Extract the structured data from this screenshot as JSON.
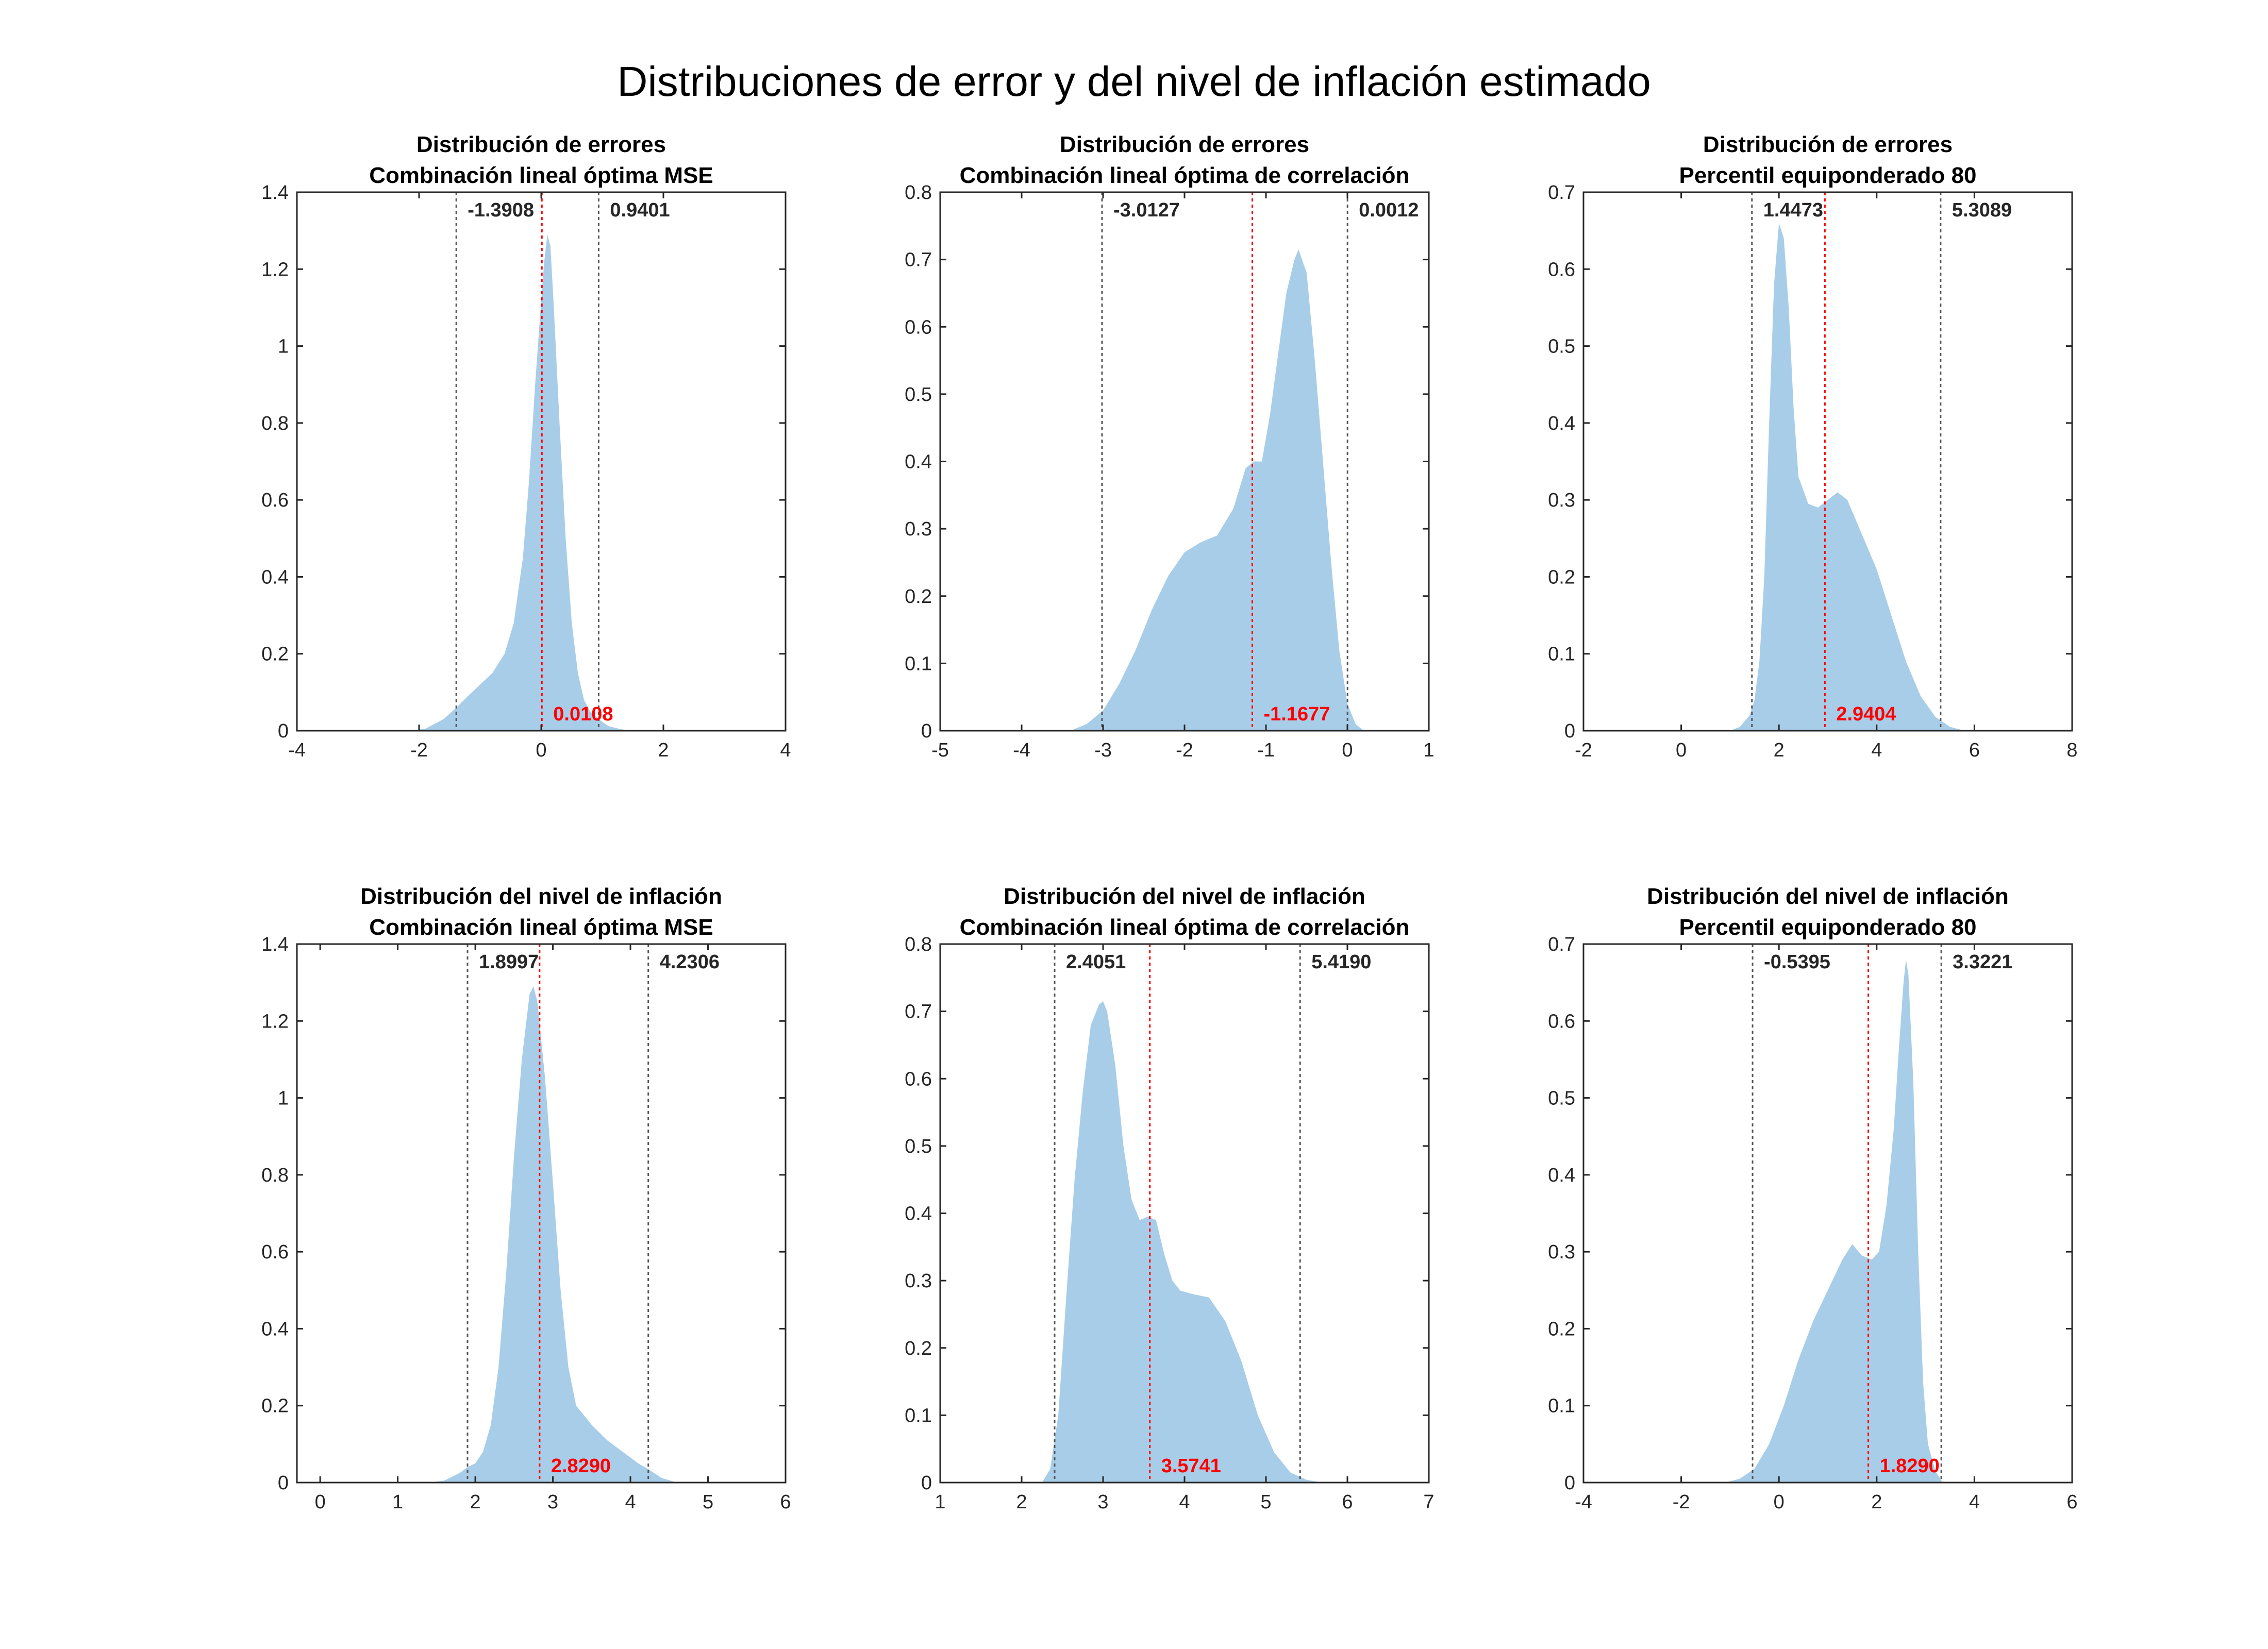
{
  "figure": {
    "title": "Distribuciones de error y del nivel de inflación estimado",
    "fill_color": "#a8cde8",
    "median_line_color": "#ff0000",
    "ci_line_color": "#555555"
  },
  "chart_data": [
    {
      "type": "area",
      "title": [
        "Distribución de errores",
        "Combinación lineal óptima MSE"
      ],
      "xlim": [
        -4,
        4
      ],
      "ylim": [
        0,
        1.4
      ],
      "xticks": [
        -4,
        -2,
        0,
        2,
        4
      ],
      "xtick_labels": [
        "-4",
        "-2",
        "0",
        "2",
        "4"
      ],
      "yticks": [
        0,
        0.2,
        0.4,
        0.6,
        0.8,
        1,
        1.2,
        1.4
      ],
      "ytick_labels": [
        "0",
        "0.2",
        "0.4",
        "0.6",
        "0.8",
        "1",
        "1.2",
        "1.4"
      ],
      "density": {
        "x": [
          -2.2,
          -1.9,
          -1.6,
          -1.39,
          -1.2,
          -1.0,
          -0.8,
          -0.6,
          -0.45,
          -0.3,
          -0.2,
          -0.1,
          0.0,
          0.05,
          0.1,
          0.15,
          0.2,
          0.3,
          0.4,
          0.5,
          0.6,
          0.7,
          0.8,
          0.94,
          1.1,
          1.3,
          1.5
        ],
        "y": [
          0,
          0.005,
          0.03,
          0.06,
          0.09,
          0.12,
          0.15,
          0.2,
          0.28,
          0.45,
          0.65,
          0.9,
          1.12,
          1.22,
          1.29,
          1.26,
          1.12,
          0.8,
          0.5,
          0.28,
          0.15,
          0.08,
          0.05,
          0.03,
          0.012,
          0.004,
          0
        ]
      },
      "lower": {
        "value": -1.3908,
        "label": "-1.3908"
      },
      "median": {
        "value": 0.0108,
        "label": "0.0108"
      },
      "upper": {
        "value": 0.9401,
        "label": "0.9401"
      }
    },
    {
      "type": "area",
      "title": [
        "Distribución de errores",
        "Combinación lineal óptima de correlación"
      ],
      "xlim": [
        -5,
        1
      ],
      "ylim": [
        0,
        0.8
      ],
      "xticks": [
        -5,
        -4,
        -3,
        -2,
        -1,
        0,
        1
      ],
      "xtick_labels": [
        "-5",
        "-4",
        "-3",
        "-2",
        "-1",
        "0",
        "1"
      ],
      "yticks": [
        0,
        0.1,
        0.2,
        0.3,
        0.4,
        0.5,
        0.6,
        0.7,
        0.8
      ],
      "ytick_labels": [
        "0",
        "0.1",
        "0.2",
        "0.3",
        "0.4",
        "0.5",
        "0.6",
        "0.7",
        "0.8"
      ],
      "density": {
        "x": [
          -3.4,
          -3.2,
          -3.0,
          -2.8,
          -2.6,
          -2.4,
          -2.2,
          -2.0,
          -1.8,
          -1.6,
          -1.4,
          -1.25,
          -1.15,
          -1.05,
          -0.95,
          -0.85,
          -0.75,
          -0.65,
          -0.6,
          -0.5,
          -0.4,
          -0.3,
          -0.2,
          -0.1,
          0.0,
          0.1,
          0.2
        ],
        "y": [
          0,
          0.01,
          0.03,
          0.07,
          0.12,
          0.18,
          0.23,
          0.265,
          0.28,
          0.29,
          0.33,
          0.39,
          0.4,
          0.4,
          0.47,
          0.56,
          0.65,
          0.7,
          0.715,
          0.68,
          0.55,
          0.4,
          0.25,
          0.12,
          0.04,
          0.01,
          0
        ]
      },
      "lower": {
        "value": -3.0127,
        "label": "-3.0127"
      },
      "median": {
        "value": -1.1677,
        "label": "-1.1677"
      },
      "upper": {
        "value": 0.0012,
        "label": "0.0012"
      }
    },
    {
      "type": "area",
      "title": [
        "Distribución de errores",
        "Percentil equiponderado 80"
      ],
      "xlim": [
        -2,
        8
      ],
      "ylim": [
        0,
        0.7
      ],
      "xticks": [
        -2,
        0,
        2,
        4,
        6,
        8
      ],
      "xtick_labels": [
        "-2",
        "0",
        "2",
        "4",
        "6",
        "8"
      ],
      "yticks": [
        0,
        0.1,
        0.2,
        0.3,
        0.4,
        0.5,
        0.6,
        0.7
      ],
      "ytick_labels": [
        "0",
        "0.1",
        "0.2",
        "0.3",
        "0.4",
        "0.5",
        "0.6",
        "0.7"
      ],
      "density": {
        "x": [
          1.0,
          1.2,
          1.4,
          1.5,
          1.6,
          1.7,
          1.8,
          1.9,
          2.0,
          2.1,
          2.2,
          2.3,
          2.4,
          2.6,
          2.8,
          3.0,
          3.2,
          3.4,
          3.6,
          3.8,
          4.0,
          4.3,
          4.6,
          4.9,
          5.2,
          5.5,
          5.8
        ],
        "y": [
          0,
          0.005,
          0.02,
          0.04,
          0.09,
          0.2,
          0.4,
          0.58,
          0.66,
          0.64,
          0.55,
          0.42,
          0.33,
          0.295,
          0.29,
          0.3,
          0.31,
          0.3,
          0.27,
          0.24,
          0.21,
          0.15,
          0.09,
          0.045,
          0.018,
          0.005,
          0
        ]
      },
      "lower": {
        "value": 1.4473,
        "label": "1.4473"
      },
      "median": {
        "value": 2.9404,
        "label": "2.9404"
      },
      "upper": {
        "value": 5.3089,
        "label": "5.3089"
      }
    },
    {
      "type": "area",
      "title": [
        "Distribución del nivel de inflación",
        "Combinación lineal óptima MSE"
      ],
      "xlim": [
        -0.3,
        6
      ],
      "ylim": [
        0,
        1.4
      ],
      "xticks": [
        0,
        1,
        2,
        3,
        4,
        5,
        6
      ],
      "xtick_labels": [
        "0",
        "1",
        "2",
        "3",
        "4",
        "5",
        "6"
      ],
      "yticks": [
        0,
        0.2,
        0.4,
        0.6,
        0.8,
        1,
        1.2,
        1.4
      ],
      "ytick_labels": [
        "0",
        "0.2",
        "0.4",
        "0.6",
        "0.8",
        "1",
        "1.2",
        "1.4"
      ],
      "density": {
        "x": [
          1.4,
          1.6,
          1.8,
          1.9,
          2.0,
          2.1,
          2.2,
          2.3,
          2.4,
          2.5,
          2.6,
          2.7,
          2.75,
          2.8,
          2.9,
          3.0,
          3.1,
          3.2,
          3.3,
          3.5,
          3.7,
          3.9,
          4.1,
          4.23,
          4.4,
          4.6
        ],
        "y": [
          0,
          0.005,
          0.025,
          0.04,
          0.05,
          0.08,
          0.15,
          0.3,
          0.55,
          0.85,
          1.1,
          1.27,
          1.29,
          1.25,
          1.05,
          0.78,
          0.5,
          0.3,
          0.2,
          0.15,
          0.11,
          0.08,
          0.05,
          0.035,
          0.012,
          0
        ]
      },
      "lower": {
        "value": 1.8997,
        "label": "1.8997"
      },
      "median": {
        "value": 2.829,
        "label": "2.8290"
      },
      "upper": {
        "value": 4.2306,
        "label": "4.2306"
      }
    },
    {
      "type": "area",
      "title": [
        "Distribución del nivel de inflación",
        "Combinación lineal óptima de correlación"
      ],
      "xlim": [
        1,
        7
      ],
      "ylim": [
        0,
        0.8
      ],
      "xticks": [
        1,
        2,
        3,
        4,
        5,
        6,
        7
      ],
      "xtick_labels": [
        "1",
        "2",
        "3",
        "4",
        "5",
        "6",
        "7"
      ],
      "yticks": [
        0,
        0.1,
        0.2,
        0.3,
        0.4,
        0.5,
        0.6,
        0.7,
        0.8
      ],
      "ytick_labels": [
        "0",
        "0.1",
        "0.2",
        "0.3",
        "0.4",
        "0.5",
        "0.6",
        "0.7",
        "0.8"
      ],
      "density": {
        "x": [
          2.25,
          2.35,
          2.45,
          2.55,
          2.65,
          2.75,
          2.85,
          2.95,
          3.0,
          3.05,
          3.15,
          3.25,
          3.35,
          3.45,
          3.55,
          3.65,
          3.75,
          3.85,
          3.95,
          4.1,
          4.3,
          4.5,
          4.7,
          4.9,
          5.1,
          5.3,
          5.5,
          5.7
        ],
        "y": [
          0,
          0.02,
          0.1,
          0.28,
          0.45,
          0.58,
          0.68,
          0.71,
          0.715,
          0.7,
          0.62,
          0.5,
          0.42,
          0.39,
          0.395,
          0.39,
          0.34,
          0.3,
          0.285,
          0.28,
          0.275,
          0.24,
          0.18,
          0.1,
          0.045,
          0.015,
          0.004,
          0
        ]
      },
      "lower": {
        "value": 2.4051,
        "label": "2.4051"
      },
      "median": {
        "value": 3.5741,
        "label": "3.5741"
      },
      "upper": {
        "value": 5.419,
        "label": "5.4190"
      }
    },
    {
      "type": "area",
      "title": [
        "Distribución del nivel de inflación",
        "Percentil equiponderado 80"
      ],
      "xlim": [
        -4,
        6
      ],
      "ylim": [
        0,
        0.7
      ],
      "xticks": [
        -4,
        -2,
        0,
        2,
        4,
        6
      ],
      "xtick_labels": [
        "-4",
        "-2",
        "0",
        "2",
        "4",
        "6"
      ],
      "yticks": [
        0,
        0.1,
        0.2,
        0.3,
        0.4,
        0.5,
        0.6,
        0.7
      ],
      "ytick_labels": [
        "0",
        "0.1",
        "0.2",
        "0.3",
        "0.4",
        "0.5",
        "0.6",
        "0.7"
      ],
      "density": {
        "x": [
          -1.1,
          -0.8,
          -0.5,
          -0.2,
          0.1,
          0.4,
          0.7,
          1.0,
          1.3,
          1.5,
          1.7,
          1.9,
          2.05,
          2.2,
          2.35,
          2.45,
          2.55,
          2.6,
          2.65,
          2.75,
          2.85,
          2.95,
          3.05,
          3.2,
          3.35
        ],
        "y": [
          0,
          0.005,
          0.018,
          0.05,
          0.1,
          0.16,
          0.21,
          0.25,
          0.29,
          0.31,
          0.295,
          0.29,
          0.3,
          0.36,
          0.46,
          0.56,
          0.65,
          0.68,
          0.66,
          0.52,
          0.3,
          0.13,
          0.05,
          0.015,
          0
        ]
      },
      "lower": {
        "value": -0.5395,
        "label": "-0.5395"
      },
      "median": {
        "value": 1.829,
        "label": "1.8290"
      },
      "upper": {
        "value": 3.3221,
        "label": "3.3221"
      }
    }
  ]
}
